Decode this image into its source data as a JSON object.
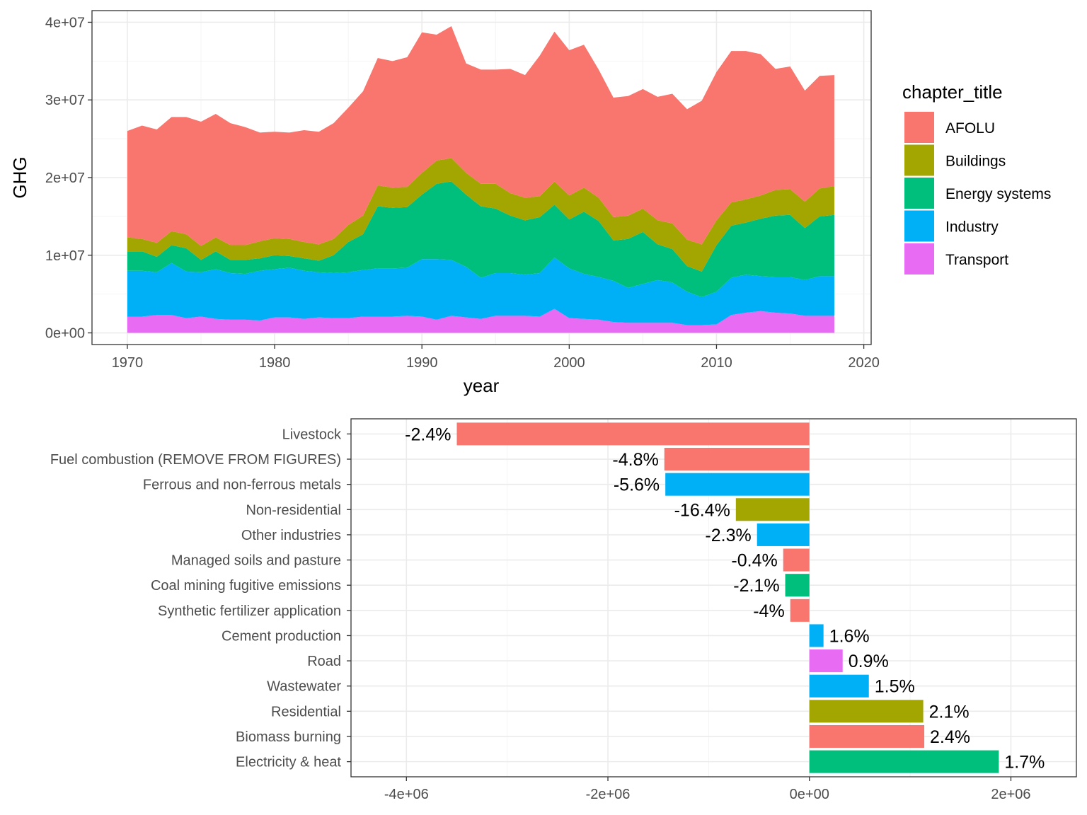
{
  "colors": {
    "AFOLU": "#F8766D",
    "Buildings": "#A3A500",
    "Energy systems": "#00BF7D",
    "Industry": "#00B0F6",
    "Transport": "#E76BF3"
  },
  "chart_data": [
    {
      "type": "area",
      "stacked": true,
      "xlabel": "year",
      "ylabel": "GHG",
      "xlim": [
        1967.6,
        2020.5
      ],
      "ylim": [
        -1500000,
        41500000
      ],
      "x_ticks": [
        1970,
        1980,
        1990,
        2000,
        2010,
        2020
      ],
      "x_tick_labels": [
        "1970",
        "1980",
        "1990",
        "2000",
        "2010",
        "2020"
      ],
      "y_ticks": [
        0,
        10000000,
        20000000,
        30000000,
        40000000
      ],
      "y_tick_labels": [
        "0e+00",
        "1e+07",
        "2e+07",
        "3e+07",
        "4e+07"
      ],
      "grid": true,
      "legend": {
        "title": "chapter_title",
        "position": "right",
        "entries": [
          "AFOLU",
          "Buildings",
          "Energy systems",
          "Industry",
          "Transport"
        ]
      },
      "x": [
        1970,
        1971,
        1972,
        1973,
        1974,
        1975,
        1976,
        1977,
        1978,
        1979,
        1980,
        1981,
        1982,
        1983,
        1984,
        1985,
        1986,
        1987,
        1988,
        1989,
        1990,
        1991,
        1992,
        1993,
        1994,
        1995,
        1996,
        1997,
        1998,
        1999,
        2000,
        2001,
        2002,
        2003,
        2004,
        2005,
        2006,
        2007,
        2008,
        2009,
        2010,
        2011,
        2012,
        2013,
        2014,
        2015,
        2016,
        2017,
        2018
      ],
      "series": [
        {
          "name": "Transport",
          "values": [
            2100000,
            2100000,
            2300000,
            2300000,
            1900000,
            2100000,
            1800000,
            1700000,
            1700000,
            1600000,
            2000000,
            2000000,
            1800000,
            2000000,
            1900000,
            1900000,
            2100000,
            2100000,
            2100000,
            2200000,
            2100000,
            1700000,
            2200000,
            2000000,
            1800000,
            2200000,
            2200000,
            2200000,
            2100000,
            3100000,
            1900000,
            1800000,
            1700000,
            1400000,
            1300000,
            1300000,
            1300000,
            1300000,
            1000000,
            1000000,
            1100000,
            2300000,
            2600000,
            2800000,
            2600000,
            2500000,
            2200000,
            2200000,
            2200000
          ]
        },
        {
          "name": "Industry",
          "values": [
            5900000,
            5900000,
            5500000,
            6700000,
            6000000,
            5700000,
            6400000,
            6000000,
            5900000,
            6400000,
            6200000,
            6400000,
            6200000,
            5800000,
            5800000,
            5900000,
            6000000,
            6200000,
            6200000,
            6200000,
            7400000,
            7800000,
            7200000,
            6500000,
            5300000,
            5500000,
            5500000,
            5300000,
            5600000,
            6600000,
            6400000,
            5800000,
            5500000,
            5300000,
            4500000,
            5000000,
            5500000,
            5200000,
            4300000,
            3600000,
            4200000,
            4800000,
            4900000,
            4500000,
            4600000,
            4700000,
            4600000,
            5100000,
            5100000
          ]
        },
        {
          "name": "Energy systems",
          "values": [
            2500000,
            2500000,
            2000000,
            2300000,
            3000000,
            1600000,
            2300000,
            1700000,
            1800000,
            1600000,
            1800000,
            1500000,
            1600000,
            1500000,
            2300000,
            3900000,
            4600000,
            8000000,
            7800000,
            7800000,
            8300000,
            9700000,
            10100000,
            9300000,
            9200000,
            8300000,
            7400000,
            7000000,
            7200000,
            6800000,
            6300000,
            8000000,
            7200000,
            5200000,
            6300000,
            6700000,
            4600000,
            4300000,
            3300000,
            3300000,
            6000000,
            6700000,
            6700000,
            7400000,
            7900000,
            8000000,
            6700000,
            7700000,
            7900000
          ]
        },
        {
          "name": "Buildings",
          "values": [
            1800000,
            1600000,
            1800000,
            1800000,
            1800000,
            1800000,
            1800000,
            1900000,
            1900000,
            2200000,
            2200000,
            2200000,
            2100000,
            2100000,
            2100000,
            2200000,
            2400000,
            2700000,
            2600000,
            2600000,
            2800000,
            3000000,
            3000000,
            2800000,
            2900000,
            3200000,
            2900000,
            2900000,
            2700000,
            3000000,
            3100000,
            3100000,
            3000000,
            3000000,
            3000000,
            3000000,
            3100000,
            3300000,
            3400000,
            3500000,
            3200000,
            3000000,
            3000000,
            3000000,
            3300000,
            3300000,
            3400000,
            3600000,
            3700000
          ]
        },
        {
          "name": "AFOLU",
          "values": [
            13700000,
            14600000,
            14600000,
            14700000,
            15100000,
            16000000,
            15900000,
            15700000,
            15200000,
            14000000,
            13700000,
            13700000,
            14400000,
            14500000,
            14900000,
            15100000,
            16000000,
            16400000,
            16300000,
            16700000,
            18100000,
            16200000,
            17000000,
            14100000,
            14700000,
            14700000,
            16000000,
            15800000,
            18100000,
            19300000,
            18700000,
            18400000,
            16500000,
            15400000,
            15400000,
            15400000,
            15900000,
            16700000,
            16800000,
            18500000,
            19100000,
            19500000,
            19100000,
            18200000,
            15600000,
            15800000,
            14300000,
            14500000,
            14300000
          ]
        }
      ]
    },
    {
      "type": "bar",
      "orientation": "horizontal",
      "xlim": [
        -4550000,
        2650000
      ],
      "x_ticks": [
        -4000000,
        -2000000,
        0,
        2000000
      ],
      "x_tick_labels": [
        "-4e+06",
        "-2e+06",
        "0e+00",
        "2e+06"
      ],
      "grid": true,
      "categories": [
        "Livestock",
        "Fuel combustion (REMOVE FROM FIGURES)",
        "Ferrous and non-ferrous metals",
        "Non-residential",
        "Other industries",
        "Managed soils and pasture",
        "Coal mining fugitive emissions",
        "Synthetic fertilizer application",
        "Cement production",
        "Road",
        "Wastewater",
        "Residential",
        "Biomass burning",
        "Electricity & heat"
      ],
      "values": [
        -3500000,
        -1440000,
        -1430000,
        -730000,
        -520000,
        -260000,
        -240000,
        -190000,
        140000,
        330000,
        590000,
        1130000,
        1140000,
        1880000
      ],
      "groups": [
        "AFOLU",
        "AFOLU",
        "Industry",
        "Buildings",
        "Industry",
        "AFOLU",
        "Energy systems",
        "AFOLU",
        "Industry",
        "Transport",
        "Industry",
        "Buildings",
        "AFOLU",
        "Energy systems"
      ],
      "labels": [
        "-2.4%",
        "-4.8%",
        "-5.6%",
        "-16.4%",
        "-2.3%",
        "-0.4%",
        "-2.1%",
        "-4%",
        "1.6%",
        "0.9%",
        "1.5%",
        "2.1%",
        "2.4%",
        "1.7%"
      ]
    }
  ]
}
